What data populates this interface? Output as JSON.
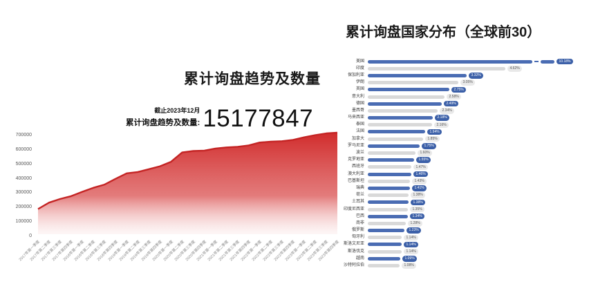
{
  "left_chart": {
    "title": "累计询盘趋势及数量",
    "stat": {
      "caption": "截止2023年12月",
      "label": "累计询盘趋势及数量:",
      "value": "15177847"
    }
  },
  "right_chart": {
    "title": "累计询盘国家分布（全球前30）"
  },
  "colors": {
    "line_red": "#c42424",
    "area_top": "#d12c2c",
    "bar_blue": "#4a6cb3",
    "bar_gray": "#d9d9d9",
    "pill_blue": "#3c60a8",
    "pill_blue_text": "#ffffff",
    "pill_gray": "#e9e9e9",
    "pill_gray_text": "#555555"
  },
  "chart_data": [
    {
      "type": "area",
      "title": "累计询盘趋势及数量",
      "xlabel": "",
      "ylabel": "",
      "grid": false,
      "legend": "none",
      "ylim": [
        0,
        700000
      ],
      "y_ticks": [
        700000,
        600000,
        500000,
        400000,
        300000,
        200000,
        100000,
        0
      ],
      "x": [
        "2017年第一季度",
        "2017年第二季度",
        "2017年第三季度",
        "2017年第四季度",
        "2018年第一季度",
        "2018年第二季度",
        "2018年第三季度",
        "2018年第四季度",
        "2019年第一季度",
        "2019年第二季度",
        "2019年第三季度",
        "2019年第四季度",
        "2020年第一季度",
        "2020年第二季度",
        "2020年第三季度",
        "2020年第四季度",
        "2021年第一季度",
        "2021年第二季度",
        "2021年第三季度",
        "2021年第四季度",
        "2022年第一季度",
        "2022年第二季度",
        "2022年第三季度",
        "2022年第四季度",
        "2023年第一季度",
        "2023年第二季度",
        "2023年第三季度",
        "2023年第四季度"
      ],
      "values": [
        170000,
        215000,
        240000,
        260000,
        290000,
        318000,
        340000,
        380000,
        418000,
        427000,
        447000,
        467000,
        498000,
        563000,
        573000,
        576000,
        590000,
        598000,
        602000,
        612000,
        632000,
        638000,
        641000,
        650000,
        668000,
        683000,
        695000,
        700000
      ],
      "annotation": {
        "caption": "截止2023年12月",
        "label": "累计询盘趋势及数量:",
        "value": "15177847"
      }
    },
    {
      "type": "bar",
      "orientation": "horizontal",
      "title": "累计询盘国家分布（全球前30）",
      "grid": false,
      "legend": "none",
      "axis_break_on_first_bar": true,
      "categories": [
        "美国",
        "印度",
        "保加利亚",
        "伊朗",
        "英国",
        "意大利",
        "德国",
        "墨西哥",
        "马来西亚",
        "泰国",
        "法国",
        "加拿大",
        "罗马尼亚",
        "波兰",
        "克罗地亚",
        "西班牙",
        "澳大利亚",
        "巴基斯坦",
        "瑞典",
        "荷兰",
        "土耳其",
        "印度尼西亚",
        "巴西",
        "南非",
        "俄罗斯",
        "匈牙利",
        "斯洛文尼亚",
        "斯洛伐克",
        "越南",
        "沙特阿拉伯"
      ],
      "values": [
        10.18,
        4.62,
        3.32,
        3.05,
        2.75,
        2.58,
        2.49,
        2.34,
        2.18,
        2.16,
        1.94,
        1.85,
        1.75,
        1.6,
        1.55,
        1.47,
        1.46,
        1.43,
        1.41,
        1.38,
        1.38,
        1.35,
        1.34,
        1.28,
        1.23,
        1.14,
        1.14,
        1.14,
        1.09,
        1.08
      ],
      "labels": [
        "10.18%",
        "4.62%",
        "3.32%",
        "3.05%",
        "2.75%",
        "2.58%",
        "2.49%",
        "2.34%",
        "2.18%",
        "2.16%",
        "1.94%",
        "1.85%",
        "1.75%",
        "1.60%",
        "1.55%",
        "1.47%",
        "1.46%",
        "1.43%",
        "1.41%",
        "1.38%",
        "1.38%",
        "1.35%",
        "1.34%",
        "1.28%",
        "1.23%",
        "1.14%",
        "1.14%",
        "1.14%",
        "1.09%",
        "1.08%"
      ]
    }
  ]
}
